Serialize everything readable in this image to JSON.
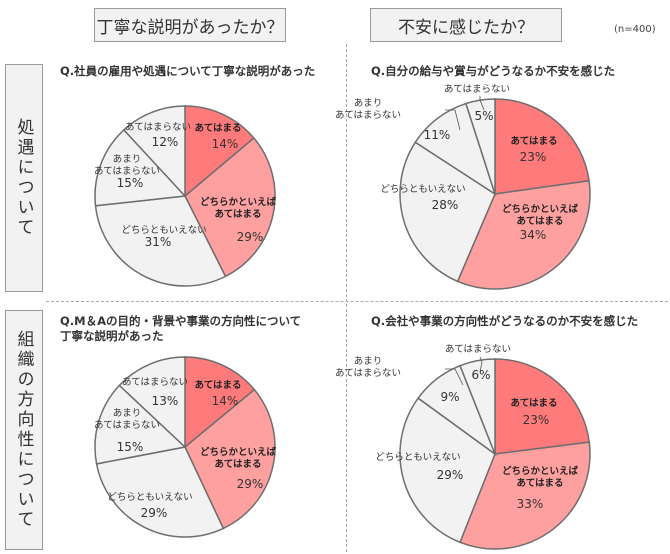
{
  "header": {
    "col1": "丁寧な説明があったか？",
    "col2": "不安に感じたか？",
    "row1": "処遇について",
    "row2": "組織の方向性について",
    "note": "(n=400)"
  },
  "colors": {
    "apply": "#ff7b7b",
    "somewhat_apply": "#ffa0a0",
    "neutral": "#f2f2f2",
    "not_really": "#f2f2f2",
    "not_apply": "#f2f2f2",
    "border": "#6e6e6e"
  },
  "chart_data": [
    {
      "type": "pie",
      "title": "Q.社員の雇用や処遇について丁寧な説明があった",
      "slices": [
        {
          "label": "あてはまる",
          "value": 14
        },
        {
          "label": "どちらかといえば\nあてはまる",
          "value": 29
        },
        {
          "label": "どちらともいえない",
          "value": 31
        },
        {
          "label": "あまり\nあてはまらない",
          "value": 15
        },
        {
          "label": "あてはまらない",
          "value": 12
        }
      ]
    },
    {
      "type": "pie",
      "title": "Q.自分の給与や賞与がどうなるか不安を感じた",
      "slices": [
        {
          "label": "あてはまる",
          "value": 23
        },
        {
          "label": "どちらかといえば\nあてはまる",
          "value": 34
        },
        {
          "label": "どちらともいえない",
          "value": 28
        },
        {
          "label": "あまり\nあてはまらない",
          "value": 11
        },
        {
          "label": "あてはまらない",
          "value": 5
        }
      ]
    },
    {
      "type": "pie",
      "title": "Q.M＆Aの目的・背景や事業の方向性について\n丁寧な説明があった",
      "slices": [
        {
          "label": "あてはまる",
          "value": 14
        },
        {
          "label": "どちらかといえば\nあてはまる",
          "value": 29
        },
        {
          "label": "どちらともいえない",
          "value": 29
        },
        {
          "label": "あまり\nあてはまらない",
          "value": 15
        },
        {
          "label": "あてはまらない",
          "value": 13
        }
      ]
    },
    {
      "type": "pie",
      "title": "Q.会社や事業の方向性がどうなるのか不安を感じた",
      "slices": [
        {
          "label": "あてはまる",
          "value": 23
        },
        {
          "label": "どちらかといえば\nあてはまる",
          "value": 33
        },
        {
          "label": "どちらともいえない",
          "value": 29
        },
        {
          "label": "あまり\nあてはまらない",
          "value": 9
        },
        {
          "label": "あてはまらない",
          "value": 6
        }
      ]
    }
  ]
}
